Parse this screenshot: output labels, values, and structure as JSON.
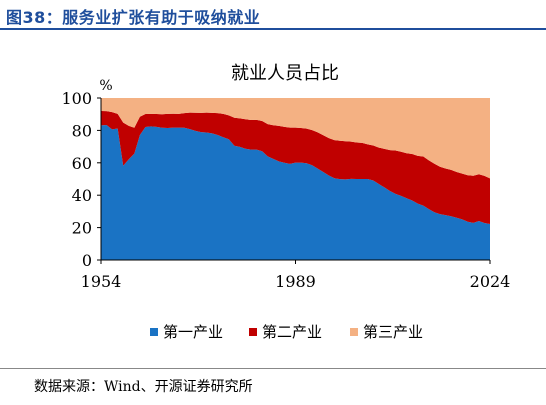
{
  "figure": {
    "title": "图38：服务业扩张有助于吸纳就业",
    "source": "数据来源：Wind、开源证券研究所"
  },
  "chart_data": {
    "type": "area",
    "stacked": true,
    "title": "就业人员占比",
    "ylabel": "%",
    "xlabel": "",
    "xlim": [
      1954,
      2024
    ],
    "ylim": [
      0,
      100
    ],
    "xticks": [
      1954,
      1989,
      2024
    ],
    "yticks": [
      0,
      20,
      40,
      60,
      80,
      100
    ],
    "legend_position": "bottom",
    "colors": {
      "primary": "#1a73c4",
      "secondary": "#c00000",
      "tertiary": "#f4b183"
    },
    "x": [
      1954,
      1955,
      1956,
      1957,
      1958,
      1959,
      1960,
      1961,
      1962,
      1963,
      1964,
      1965,
      1966,
      1967,
      1968,
      1969,
      1970,
      1971,
      1972,
      1973,
      1974,
      1975,
      1976,
      1977,
      1978,
      1979,
      1980,
      1981,
      1982,
      1983,
      1984,
      1985,
      1986,
      1987,
      1988,
      1989,
      1990,
      1991,
      1992,
      1993,
      1994,
      1995,
      1996,
      1997,
      1998,
      1999,
      2000,
      2001,
      2002,
      2003,
      2004,
      2005,
      2006,
      2007,
      2008,
      2009,
      2010,
      2011,
      2012,
      2013,
      2014,
      2015,
      2016,
      2017,
      2018,
      2019,
      2020,
      2021,
      2022,
      2023,
      2024
    ],
    "series": [
      {
        "name": "第一产业",
        "values": [
          83.1,
          83.3,
          80.6,
          81.2,
          58.2,
          62.2,
          65.7,
          77.2,
          82.1,
          82.5,
          82.2,
          81.6,
          81.5,
          81.7,
          81.7,
          81.6,
          80.8,
          79.7,
          78.9,
          78.7,
          78.2,
          77.2,
          75.8,
          74.5,
          70.5,
          69.8,
          68.7,
          68.1,
          68.1,
          67.1,
          64.0,
          62.4,
          60.9,
          60.0,
          59.3,
          60.1,
          60.1,
          59.7,
          58.5,
          56.4,
          54.3,
          52.2,
          50.5,
          49.9,
          49.8,
          50.1,
          50.0,
          50.0,
          50.0,
          49.1,
          46.9,
          44.8,
          42.6,
          40.8,
          39.6,
          38.1,
          36.7,
          34.8,
          33.6,
          31.4,
          29.5,
          28.3,
          27.7,
          27.0,
          26.1,
          25.1,
          23.6,
          22.9,
          24.1,
          22.8,
          22.2
        ]
      },
      {
        "name": "第二产业",
        "values": [
          8.9,
          8.6,
          10.7,
          9.0,
          26.6,
          20.6,
          15.9,
          11.2,
          8.0,
          7.7,
          7.9,
          8.4,
          8.7,
          8.6,
          8.5,
          9.1,
          10.2,
          11.2,
          11.9,
          12.3,
          12.6,
          13.5,
          14.4,
          14.8,
          17.3,
          17.6,
          18.2,
          18.3,
          18.4,
          18.7,
          19.9,
          20.8,
          21.9,
          22.2,
          22.4,
          21.6,
          21.4,
          21.4,
          21.7,
          22.4,
          22.7,
          23.0,
          23.5,
          23.7,
          23.5,
          23.0,
          22.5,
          22.3,
          21.4,
          21.6,
          22.5,
          23.8,
          25.2,
          26.8,
          27.2,
          27.8,
          28.7,
          29.5,
          30.3,
          30.1,
          29.9,
          29.3,
          28.8,
          28.6,
          28.2,
          28.2,
          28.7,
          29.1,
          28.8,
          29.1,
          28.2
        ]
      },
      {
        "name": "第三产业",
        "values": [
          8.0,
          8.1,
          8.7,
          9.8,
          15.2,
          17.2,
          18.4,
          11.6,
          9.9,
          9.8,
          9.9,
          10.0,
          9.8,
          9.7,
          9.8,
          9.3,
          9.0,
          9.1,
          9.2,
          9.0,
          9.2,
          9.3,
          9.8,
          10.7,
          12.2,
          12.6,
          13.1,
          13.6,
          13.5,
          14.2,
          16.1,
          16.8,
          17.2,
          17.8,
          18.3,
          18.3,
          18.5,
          18.9,
          19.8,
          21.2,
          23.0,
          24.8,
          26.0,
          26.4,
          26.7,
          26.9,
          27.5,
          27.7,
          28.6,
          29.3,
          30.6,
          31.4,
          32.2,
          32.4,
          33.2,
          34.1,
          34.6,
          35.7,
          36.1,
          38.5,
          40.6,
          42.4,
          43.5,
          44.4,
          45.7,
          46.7,
          47.7,
          48.0,
          47.1,
          48.1,
          49.6
        ]
      }
    ]
  }
}
